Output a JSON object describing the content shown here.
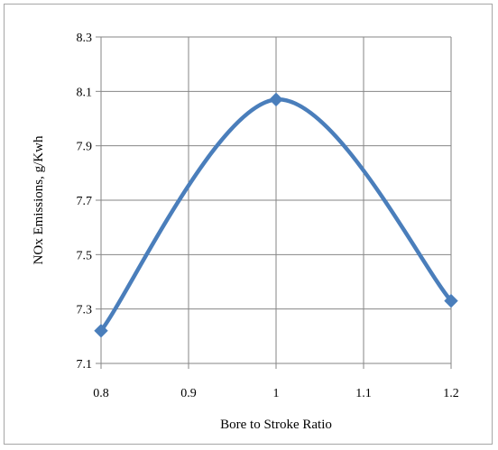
{
  "chart_data": {
    "type": "line",
    "xlabel": "Bore to Stroke Ratio",
    "ylabel": "NOx Emissions, g/Kwh",
    "xlim": [
      0.8,
      1.2
    ],
    "ylim": [
      7.1,
      8.3
    ],
    "x_ticks": [
      "0.8",
      "0.9",
      "1",
      "1.1",
      "1.2"
    ],
    "y_ticks": [
      "7.1",
      "7.3",
      "7.5",
      "7.7",
      "7.9",
      "8.1",
      "8.3"
    ],
    "grid": true,
    "smooth": true,
    "series": [
      {
        "x": [
          0.8,
          1.0,
          1.2
        ],
        "y": [
          7.22,
          8.07,
          7.33
        ],
        "color": "#4a7ebb",
        "marker": "diamond"
      }
    ]
  }
}
